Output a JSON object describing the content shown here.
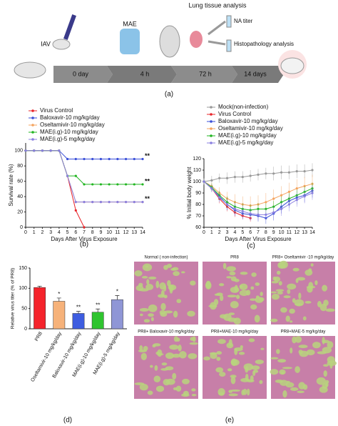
{
  "panel_labels": [
    "(a)",
    "(b)",
    "(c)",
    "(d)",
    "(e)"
  ],
  "diagram": {
    "title": "Lung tissue analysis",
    "steps": [
      "IAV",
      "MAE"
    ],
    "outputs": [
      "NA titer",
      "Histopathology analysis"
    ],
    "timeline": [
      "0 day",
      "4 h",
      "72 h",
      "14 days"
    ]
  },
  "chart_data": [
    {
      "type": "line",
      "y_label": "Survival rate (%)",
      "x_label": "Days After Virus Exposure",
      "legend": "top",
      "x": [
        0,
        1,
        2,
        3,
        4,
        5,
        6,
        7,
        8,
        9,
        10,
        11,
        12,
        13,
        14
      ],
      "xlim": [
        0,
        14
      ],
      "xticks": [
        0,
        1,
        2,
        3,
        4,
        5,
        6,
        7,
        8,
        9,
        10,
        11,
        12,
        13,
        14
      ],
      "ylim": [
        0,
        110
      ],
      "yticks": [
        0,
        20,
        40,
        60,
        80,
        100
      ],
      "series": [
        {
          "name": "Virus Control",
          "color": "#e8242a",
          "values": [
            100,
            100,
            100,
            100,
            100,
            67,
            22,
            0,
            null,
            null,
            null,
            null,
            null,
            null,
            null
          ]
        },
        {
          "name": "Baloxavir-10 mg/kg/day",
          "color": "#3a4fd8",
          "significance": "**",
          "values": [
            100,
            100,
            100,
            100,
            100,
            89,
            89,
            89,
            89,
            89,
            89,
            89,
            89,
            89,
            89
          ]
        },
        {
          "name": "Oseltamivir-10 mg/kg/day",
          "color": "#f4a460",
          "significance": "**",
          "values": [
            100,
            100,
            100,
            100,
            100,
            67,
            33,
            33,
            33,
            33,
            33,
            33,
            33,
            33,
            33
          ]
        },
        {
          "name": "MAE(i.g)-10 mg/kg/day",
          "color": "#22b522",
          "significance": "**",
          "values": [
            100,
            100,
            100,
            100,
            100,
            67,
            67,
            56,
            56,
            56,
            56,
            56,
            56,
            56,
            56
          ]
        },
        {
          "name": "MAE(i.g)-5 mg/kg/day",
          "color": "#8a7fe0",
          "values": [
            100,
            100,
            100,
            100,
            100,
            67,
            33,
            33,
            33,
            33,
            33,
            33,
            33,
            33,
            33
          ]
        }
      ]
    },
    {
      "type": "line",
      "y_label": "% Initial body weight",
      "x_label": "Days After Virus Exposure",
      "legend": "top",
      "x": [
        0,
        1,
        2,
        3,
        4,
        5,
        6,
        7,
        8,
        9,
        10,
        11,
        12,
        13,
        14
      ],
      "xlim": [
        0,
        14
      ],
      "xticks": [
        0,
        1,
        2,
        3,
        4,
        5,
        6,
        7,
        8,
        9,
        10,
        11,
        12,
        13,
        14
      ],
      "ylim": [
        60,
        120
      ],
      "yticks": [
        60,
        70,
        80,
        90,
        100,
        110,
        120
      ],
      "series": [
        {
          "name": "Mock(non-infection)",
          "color": "#999999",
          "values": [
            100,
            101,
            103,
            103,
            104,
            104,
            105,
            106,
            107,
            107,
            108,
            108,
            109,
            109,
            110
          ],
          "errors": [
            3,
            4,
            4,
            5,
            5,
            5,
            5,
            5,
            5,
            6,
            6,
            6,
            6,
            6,
            6
          ]
        },
        {
          "name": "Virus Control",
          "color": "#e8242a",
          "values": [
            100,
            94,
            85,
            78,
            73,
            70,
            68,
            null,
            null,
            null,
            null,
            null,
            null,
            null,
            null
          ],
          "errors": [
            2,
            3,
            4,
            4,
            4,
            3,
            3,
            null,
            null,
            null,
            null,
            null,
            null,
            null,
            null
          ]
        },
        {
          "name": "Baloxavir-10 mg/kg/day",
          "color": "#3a4fd8",
          "values": [
            100,
            94,
            87,
            80,
            75,
            72,
            71,
            70,
            68,
            72,
            78,
            83,
            86,
            88,
            92
          ],
          "errors": [
            2,
            3,
            4,
            5,
            5,
            5,
            5,
            5,
            5,
            6,
            6,
            6,
            6,
            6,
            6
          ]
        },
        {
          "name": "Oseltamivir-10 mg/kg/day",
          "color": "#f4a460",
          "values": [
            100,
            96,
            90,
            85,
            82,
            80,
            79,
            80,
            82,
            85,
            88,
            91,
            94,
            96,
            98
          ],
          "errors": [
            2,
            3,
            5,
            6,
            7,
            7,
            8,
            8,
            8,
            8,
            8,
            8,
            8,
            8,
            8
          ]
        },
        {
          "name": "MAE(i.g)-10 mg/kg/day",
          "color": "#22b522",
          "values": [
            100,
            95,
            88,
            82,
            78,
            76,
            75,
            76,
            76,
            78,
            82,
            85,
            88,
            91,
            94
          ],
          "errors": [
            2,
            3,
            4,
            5,
            5,
            5,
            5,
            5,
            5,
            5,
            5,
            5,
            5,
            5,
            5
          ]
        },
        {
          "name": "MAE(i.g)-5 mg/kg/day",
          "color": "#8a7fe0",
          "values": [
            100,
            94,
            86,
            80,
            76,
            74,
            72,
            71,
            71,
            73,
            76,
            80,
            84,
            87,
            90
          ],
          "errors": [
            2,
            3,
            4,
            5,
            5,
            5,
            5,
            5,
            5,
            5,
            6,
            6,
            6,
            6,
            6
          ]
        }
      ]
    },
    {
      "type": "bar",
      "y_label": "Relative virus titer (% of PR8)",
      "categories": [
        "PR8",
        "Oseltamivir-10 mg/kg/day",
        "Baloxavir-10 mg/kg/day",
        "MAE(i.g)-10 mg/kg/day",
        "MAE(i.g)-5 mg/kg/day"
      ],
      "values": [
        102,
        68,
        38,
        41,
        72
      ],
      "errors": [
        3,
        8,
        5,
        8,
        10
      ],
      "colors": [
        "#f5232b",
        "#f6b27a",
        "#3e5de0",
        "#2fc42f",
        "#8f96d6"
      ],
      "significance": [
        null,
        "*",
        "**",
        "**",
        "*"
      ],
      "ylim": [
        0,
        150
      ],
      "yticks": [
        0,
        50,
        100,
        150
      ]
    }
  ],
  "histology": {
    "panels": [
      "Normal ( non-infection)",
      "PR8",
      "PR8+ Oseltamivir -10 mg/kg/day",
      "PR8+ Baloxavir-10 mg/kg/day",
      "PR8+MAE-10 mg/kg/day",
      "PR8+MAE-5 mg/kg/day"
    ]
  }
}
